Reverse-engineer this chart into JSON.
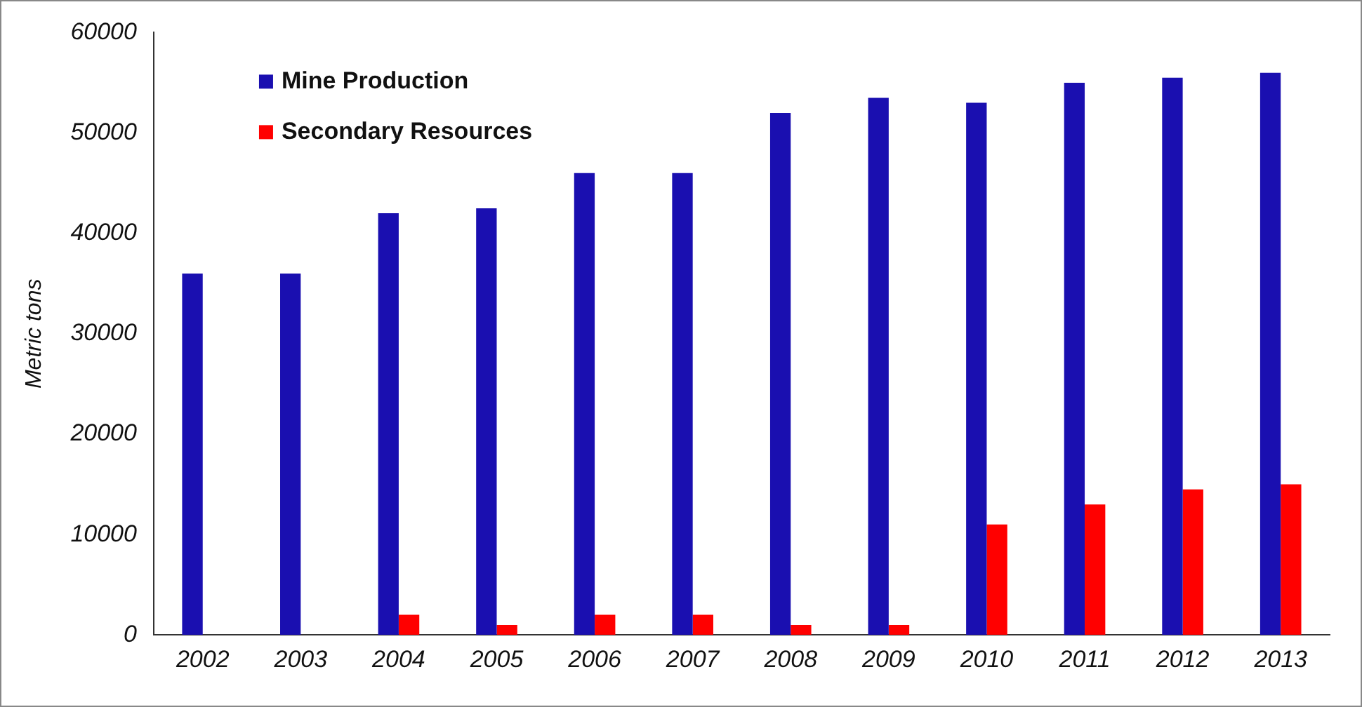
{
  "chart_data": {
    "type": "bar",
    "ylabel": "Metric tons",
    "categories": [
      "2002",
      "2003",
      "2004",
      "2005",
      "2006",
      "2007",
      "2008",
      "2009",
      "2010",
      "2011",
      "2012",
      "2013"
    ],
    "series": [
      {
        "name": "Mine Production",
        "color": "#1a0fb0",
        "values": [
          36000,
          36000,
          42000,
          42500,
          46000,
          46000,
          52000,
          53500,
          53000,
          55000,
          55500,
          56000
        ]
      },
      {
        "name": "Secondary Resources",
        "color": "#ff0000",
        "values": [
          null,
          null,
          2000,
          1000,
          2000,
          2000,
          1000,
          1000,
          11000,
          13000,
          14500,
          15000
        ]
      }
    ],
    "ylim": [
      0,
      60000
    ],
    "yticks": [
      0,
      10000,
      20000,
      30000,
      40000,
      50000,
      60000
    ],
    "grid": false,
    "legend": "top left"
  }
}
